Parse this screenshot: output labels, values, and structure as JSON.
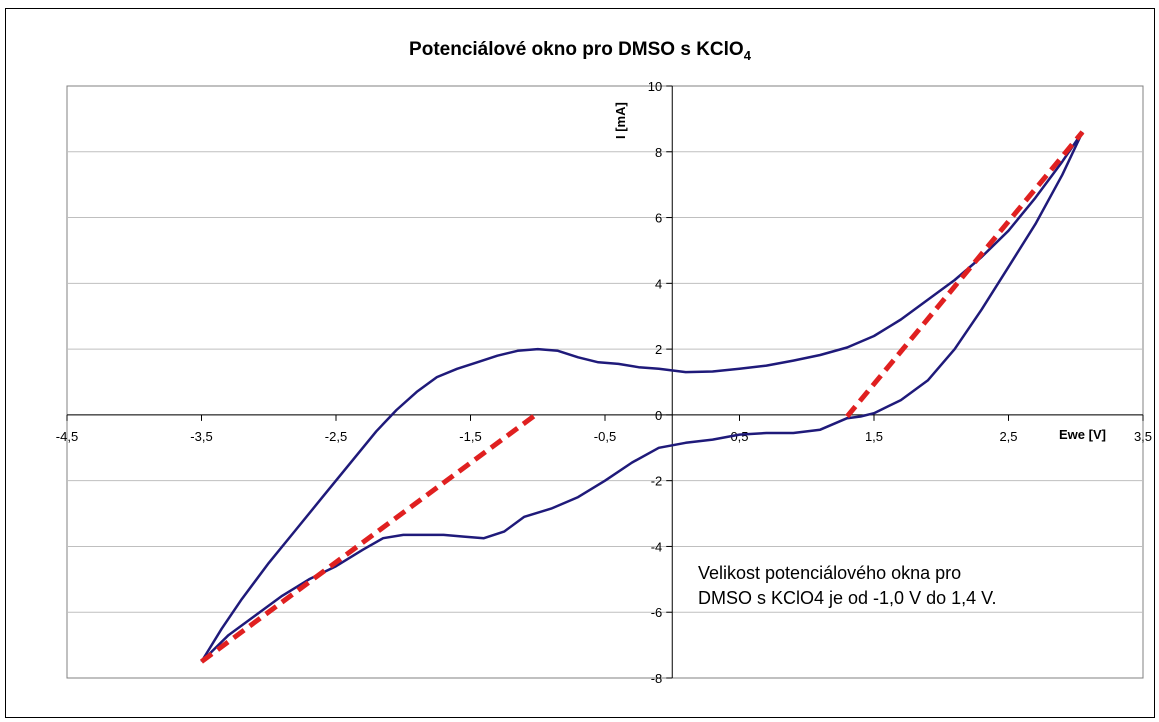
{
  "chart_data": {
    "type": "line",
    "title": "Potenciálové okno pro DMSO s KClO",
    "title_subscript": "4",
    "xlabel": "Ewe [V]",
    "ylabel": "I [mA]",
    "xlim": [
      -4.5,
      3.5
    ],
    "ylim": [
      -8,
      10
    ],
    "x_ticks": [
      -4.5,
      -3.5,
      -2.5,
      -1.5,
      -0.5,
      0.5,
      1.5,
      2.5,
      3.5
    ],
    "x_tick_labels": [
      "-4,5",
      "-3,5",
      "-2,5",
      "-1,5",
      "-0,5",
      "0,5",
      "1,5",
      "2,5",
      "3,5"
    ],
    "y_ticks": [
      -8,
      -6,
      -4,
      -2,
      0,
      2,
      4,
      6,
      8,
      10
    ],
    "y_tick_labels": [
      "-8",
      "-6",
      "-4",
      "-2",
      "0",
      "2",
      "4",
      "6",
      "8",
      "10"
    ],
    "grid": "horizontal",
    "annotation": [
      "Velikost potenciálového okna pro",
      "DMSO s KClO4 je od -1,0 V do 1,4 V."
    ],
    "colors": {
      "cv_curve": "#1f1a7a",
      "tangent": "#e02020",
      "grid": "#bfbfbf",
      "axis": "#000000"
    },
    "series": [
      {
        "style": "solid",
        "x": [
          -3.5,
          -3.35,
          -3.2,
          -3.0,
          -2.8,
          -2.6,
          -2.4,
          -2.2,
          -2.05,
          -1.9,
          -1.75,
          -1.6,
          -1.45,
          -1.3,
          -1.15,
          -1.0,
          -0.85,
          -0.7,
          -0.55,
          -0.4,
          -0.25,
          -0.1,
          0.1,
          0.3,
          0.5,
          0.7,
          0.9,
          1.1,
          1.3,
          1.5,
          1.7,
          1.9,
          2.1,
          2.3,
          2.5,
          2.7,
          2.9,
          3.05
        ],
        "y": [
          -7.5,
          -6.5,
          -5.6,
          -4.5,
          -3.5,
          -2.5,
          -1.5,
          -0.5,
          0.15,
          0.7,
          1.15,
          1.4,
          1.6,
          1.8,
          1.95,
          2.0,
          1.95,
          1.75,
          1.6,
          1.55,
          1.45,
          1.4,
          1.3,
          1.32,
          1.4,
          1.5,
          1.65,
          1.82,
          2.05,
          2.4,
          2.9,
          3.5,
          4.1,
          4.8,
          5.6,
          6.6,
          7.7,
          8.6
        ]
      },
      {
        "style": "solid",
        "x": [
          3.05,
          2.9,
          2.7,
          2.5,
          2.3,
          2.1,
          1.9,
          1.7,
          1.5,
          1.4,
          1.3,
          1.1,
          0.9,
          0.7,
          0.5,
          0.3,
          0.1,
          -0.1,
          -0.3,
          -0.5,
          -0.7,
          -0.9,
          -1.1,
          -1.25,
          -1.4,
          -1.55,
          -1.7,
          -1.85,
          -2.0,
          -2.15,
          -2.3,
          -2.5,
          -2.7,
          -2.9,
          -3.1,
          -3.3,
          -3.5
        ],
        "y": [
          8.6,
          7.3,
          5.8,
          4.5,
          3.2,
          2.0,
          1.05,
          0.45,
          0.05,
          -0.05,
          -0.1,
          -0.45,
          -0.55,
          -0.55,
          -0.6,
          -0.75,
          -0.85,
          -1.0,
          -1.45,
          -2.0,
          -2.5,
          -2.85,
          -3.1,
          -3.55,
          -3.75,
          -3.7,
          -3.65,
          -3.65,
          -3.65,
          -3.75,
          -4.1,
          -4.6,
          -5.0,
          -5.5,
          -6.1,
          -6.7,
          -7.5
        ]
      },
      {
        "style": "dashed",
        "x": [
          -3.5,
          -1.0
        ],
        "y": [
          -7.5,
          0.05
        ]
      },
      {
        "style": "dashed",
        "x": [
          1.3,
          3.05
        ],
        "y": [
          -0.05,
          8.6
        ]
      }
    ]
  }
}
